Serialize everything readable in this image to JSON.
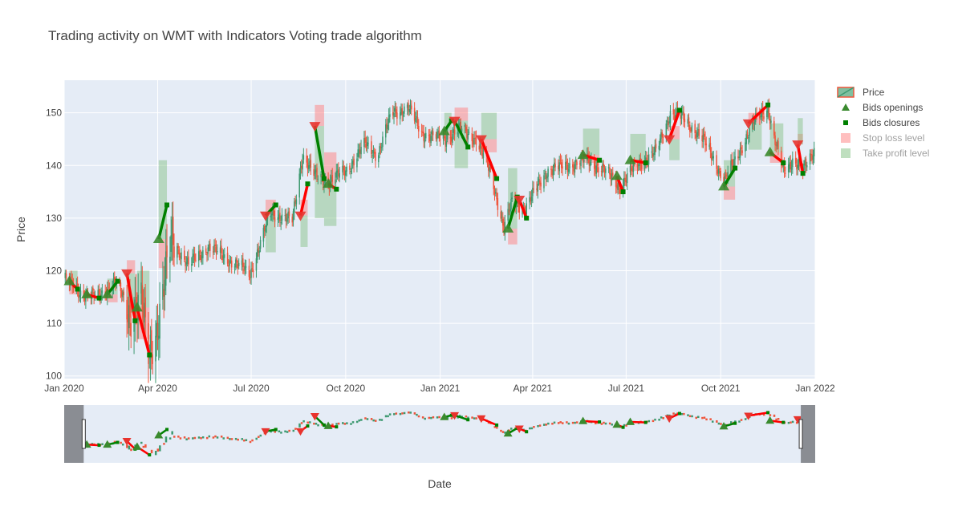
{
  "chart_data": {
    "type": "candlestick",
    "title": "Trading activity on WMT with Indicators Voting trade algorithm",
    "xlabel": "Date",
    "ylabel": "Price",
    "x_range": [
      "2020-01-01",
      "2022-01-01"
    ],
    "ylim": [
      99.5,
      156.2
    ],
    "x_ticks": [
      {
        "date": "2020-01-01",
        "label": "Jan 2020"
      },
      {
        "date": "2020-04-01",
        "label": "Apr 2020"
      },
      {
        "date": "2020-07-01",
        "label": "Jul 2020"
      },
      {
        "date": "2020-10-01",
        "label": "Oct 2020"
      },
      {
        "date": "2021-01-01",
        "label": "Jan 2021"
      },
      {
        "date": "2021-04-01",
        "label": "Apr 2021"
      },
      {
        "date": "2021-07-01",
        "label": "Jul 2021"
      },
      {
        "date": "2021-10-01",
        "label": "Oct 2021"
      },
      {
        "date": "2022-01-01",
        "label": "Jan 2022"
      }
    ],
    "y_ticks": [
      100,
      110,
      120,
      130,
      140,
      150
    ],
    "grid": true,
    "legend_position": "top-right",
    "colors": {
      "increasing": "#3d9970",
      "decreasing": "#ef553b",
      "plot_bg": "#e5ecf6",
      "trade_win": "#008000",
      "trade_loss": "#ff0000",
      "stop_loss": "#ff7f7f",
      "take_profit": "#7fbf7f",
      "range_mask": "#8a8d93"
    },
    "legend": [
      {
        "label": "Price",
        "kind": "candle",
        "dimmed": false
      },
      {
        "label": "Bids openings",
        "kind": "triangle",
        "dimmed": false
      },
      {
        "label": "Bids closures",
        "kind": "square",
        "dimmed": false
      },
      {
        "label": "Stop loss level",
        "kind": "sl-box",
        "dimmed": true
      },
      {
        "label": "Take profit level",
        "kind": "tp-box",
        "dimmed": true
      }
    ],
    "price_path": [
      [
        "2020-01-02",
        118.5
      ],
      [
        "2020-01-15",
        116.0
      ],
      [
        "2020-02-03",
        115.0
      ],
      [
        "2020-02-20",
        118.0
      ],
      [
        "2020-03-05",
        112.0
      ],
      [
        "2020-03-16",
        114.0
      ],
      [
        "2020-03-23",
        104.0
      ],
      [
        "2020-04-01",
        110.0
      ],
      [
        "2020-04-15",
        126.0
      ],
      [
        "2020-05-01",
        121.0
      ],
      [
        "2020-05-20",
        124.5
      ],
      [
        "2020-06-10",
        122.0
      ],
      [
        "2020-06-30",
        119.5
      ],
      [
        "2020-07-20",
        131.0
      ],
      [
        "2020-08-10",
        129.5
      ],
      [
        "2020-08-20",
        142.0
      ],
      [
        "2020-09-01",
        138.0
      ],
      [
        "2020-09-15",
        137.0
      ],
      [
        "2020-10-01",
        139.0
      ],
      [
        "2020-10-20",
        144.0
      ],
      [
        "2020-11-01",
        142.0
      ],
      [
        "2020-11-15",
        150.0
      ],
      [
        "2020-12-01",
        151.0
      ],
      [
        "2020-12-15",
        146.0
      ],
      [
        "2021-01-05",
        145.0
      ],
      [
        "2021-01-20",
        147.0
      ],
      [
        "2021-02-05",
        145.0
      ],
      [
        "2021-02-20",
        138.0
      ],
      [
        "2021-03-04",
        128.0
      ],
      [
        "2021-03-12",
        133.0
      ],
      [
        "2021-03-25",
        132.0
      ],
      [
        "2021-04-15",
        139.0
      ],
      [
        "2021-05-05",
        140.0
      ],
      [
        "2021-05-25",
        141.0
      ],
      [
        "2021-06-10",
        139.0
      ],
      [
        "2021-06-25",
        136.0
      ],
      [
        "2021-07-10",
        140.0
      ],
      [
        "2021-07-30",
        142.5
      ],
      [
        "2021-08-13",
        150.0
      ],
      [
        "2021-08-25",
        149.0
      ],
      [
        "2021-09-10",
        146.0
      ],
      [
        "2021-09-25",
        141.0
      ],
      [
        "2021-10-05",
        137.0
      ],
      [
        "2021-10-25",
        145.0
      ],
      [
        "2021-11-05",
        149.0
      ],
      [
        "2021-11-16",
        151.0
      ],
      [
        "2021-11-22",
        145.0
      ],
      [
        "2021-12-01",
        139.0
      ],
      [
        "2021-12-10",
        141.0
      ],
      [
        "2021-12-20",
        139.0
      ],
      [
        "2021-12-31",
        143.0
      ]
    ],
    "trades": [
      {
        "open": [
          "2020-01-06",
          118.0
        ],
        "close": [
          "2020-01-14",
          116.5
        ],
        "dir": "long",
        "win": false
      },
      {
        "open": [
          "2020-01-23",
          115.5
        ],
        "close": [
          "2020-02-04",
          114.8
        ],
        "dir": "long",
        "win": false
      },
      {
        "open": [
          "2020-02-12",
          115.5
        ],
        "close": [
          "2020-02-22",
          118.0
        ],
        "dir": "long",
        "win": true
      },
      {
        "open": [
          "2020-03-02",
          119.5
        ],
        "close": [
          "2020-03-10",
          110.5
        ],
        "dir": "short",
        "win": false
      },
      {
        "open": [
          "2020-03-12",
          113.0
        ],
        "close": [
          "2020-03-24",
          104.0
        ],
        "dir": "long",
        "win": false
      },
      {
        "open": [
          "2020-04-02",
          126.0
        ],
        "close": [
          "2020-04-10",
          132.5
        ],
        "dir": "long",
        "win": true
      },
      {
        "open": [
          "2020-07-15",
          130.5
        ],
        "close": [
          "2020-07-25",
          132.5
        ],
        "dir": "short",
        "win": true
      },
      {
        "open": [
          "2020-08-18",
          130.5
        ],
        "close": [
          "2020-08-25",
          136.5
        ],
        "dir": "short",
        "win": false
      },
      {
        "open": [
          "2020-09-01",
          147.5
        ],
        "close": [
          "2020-09-10",
          137.5
        ],
        "dir": "short",
        "win": true
      },
      {
        "open": [
          "2020-09-14",
          136.5
        ],
        "close": [
          "2020-09-22",
          135.5
        ],
        "dir": "long",
        "win": false
      },
      {
        "open": [
          "2021-01-05",
          146.5
        ],
        "close": [
          "2021-01-12",
          148.5
        ],
        "dir": "long",
        "win": true
      },
      {
        "open": [
          "2021-01-15",
          148.5
        ],
        "close": [
          "2021-01-28",
          143.5
        ],
        "dir": "short",
        "win": true
      },
      {
        "open": [
          "2021-02-10",
          145.0
        ],
        "close": [
          "2021-02-25",
          137.5
        ],
        "dir": "short",
        "win": false
      },
      {
        "open": [
          "2021-03-08",
          128.0
        ],
        "close": [
          "2021-03-17",
          134.0
        ],
        "dir": "long",
        "win": true
      },
      {
        "open": [
          "2021-03-19",
          133.5
        ],
        "close": [
          "2021-03-26",
          130.0
        ],
        "dir": "short",
        "win": false
      },
      {
        "open": [
          "2021-05-20",
          142.0
        ],
        "close": [
          "2021-06-05",
          141.0
        ],
        "dir": "long",
        "win": false
      },
      {
        "open": [
          "2021-06-22",
          138.0
        ],
        "close": [
          "2021-06-28",
          135.0
        ],
        "dir": "long",
        "win": false
      },
      {
        "open": [
          "2021-07-05",
          141.0
        ],
        "close": [
          "2021-07-20",
          140.5
        ],
        "dir": "long",
        "win": false
      },
      {
        "open": [
          "2021-08-12",
          145.0
        ],
        "close": [
          "2021-08-22",
          150.5
        ],
        "dir": "short",
        "win": false
      },
      {
        "open": [
          "2021-10-04",
          136.0
        ],
        "close": [
          "2021-10-15",
          139.5
        ],
        "dir": "long",
        "win": true
      },
      {
        "open": [
          "2021-10-28",
          148.0
        ],
        "close": [
          "2021-11-16",
          151.5
        ],
        "dir": "short",
        "win": false
      },
      {
        "open": [
          "2021-11-18",
          142.5
        ],
        "close": [
          "2021-12-01",
          140.5
        ],
        "dir": "long",
        "win": false
      },
      {
        "open": [
          "2021-12-15",
          144.0
        ],
        "close": [
          "2021-12-20",
          138.5
        ],
        "dir": "short",
        "win": false
      }
    ],
    "sl_tp_boxes": [
      {
        "start": "2020-01-06",
        "end": "2020-01-14",
        "entry": 118.0,
        "sl": 115.5,
        "tp": 120.0
      },
      {
        "start": "2020-02-12",
        "end": "2020-02-22",
        "entry": 115.5,
        "sl": 114.0,
        "tp": 118.5
      },
      {
        "start": "2020-03-02",
        "end": "2020-03-10",
        "entry": 119.5,
        "sl": 122.0,
        "tp": 112.0
      },
      {
        "start": "2020-03-12",
        "end": "2020-03-24",
        "entry": 113.0,
        "sl": 107.0,
        "tp": 120.0
      },
      {
        "start": "2020-04-02",
        "end": "2020-04-10",
        "entry": 126.0,
        "sl": 120.5,
        "tp": 141.0
      },
      {
        "start": "2020-07-15",
        "end": "2020-07-25",
        "entry": 130.5,
        "sl": 133.5,
        "tp": 123.5
      },
      {
        "start": "2020-08-18",
        "end": "2020-08-25",
        "entry": 130.5,
        "sl": 133.5,
        "tp": 124.5
      },
      {
        "start": "2020-09-01",
        "end": "2020-09-10",
        "entry": 147.5,
        "sl": 151.5,
        "tp": 130.0
      },
      {
        "start": "2020-09-10",
        "end": "2020-09-22",
        "entry": 136.5,
        "sl": 142.5,
        "tp": 128.5
      },
      {
        "start": "2021-01-05",
        "end": "2021-01-12",
        "entry": 146.5,
        "sl": 144.0,
        "tp": 150.0
      },
      {
        "start": "2021-01-15",
        "end": "2021-01-28",
        "entry": 148.5,
        "sl": 151.0,
        "tp": 139.5
      },
      {
        "start": "2021-02-10",
        "end": "2021-02-25",
        "entry": 145.0,
        "sl": 142.5,
        "tp": 150.0
      },
      {
        "start": "2021-03-08",
        "end": "2021-03-17",
        "entry": 128.0,
        "sl": 125.0,
        "tp": 139.5
      },
      {
        "start": "2021-05-20",
        "end": "2021-06-05",
        "entry": 142.0,
        "sl": 140.5,
        "tp": 147.0
      },
      {
        "start": "2021-07-05",
        "end": "2021-07-20",
        "entry": 141.0,
        "sl": 139.0,
        "tp": 146.0
      },
      {
        "start": "2021-08-12",
        "end": "2021-08-22",
        "entry": 145.0,
        "sl": 147.5,
        "tp": 141.0
      },
      {
        "start": "2021-10-04",
        "end": "2021-10-15",
        "entry": 136.0,
        "sl": 133.5,
        "tp": 141.0
      },
      {
        "start": "2021-10-28",
        "end": "2021-11-10",
        "entry": 148.0,
        "sl": 150.0,
        "tp": 143.0
      },
      {
        "start": "2021-11-18",
        "end": "2021-12-01",
        "entry": 142.5,
        "sl": 140.5,
        "tp": 148.0
      },
      {
        "start": "2021-12-15",
        "end": "2021-12-20",
        "entry": 144.0,
        "sl": 146.0,
        "tp": 149.0
      }
    ],
    "range_slider": {
      "visible_start": "2020-01-20",
      "visible_end": "2021-12-18"
    }
  }
}
